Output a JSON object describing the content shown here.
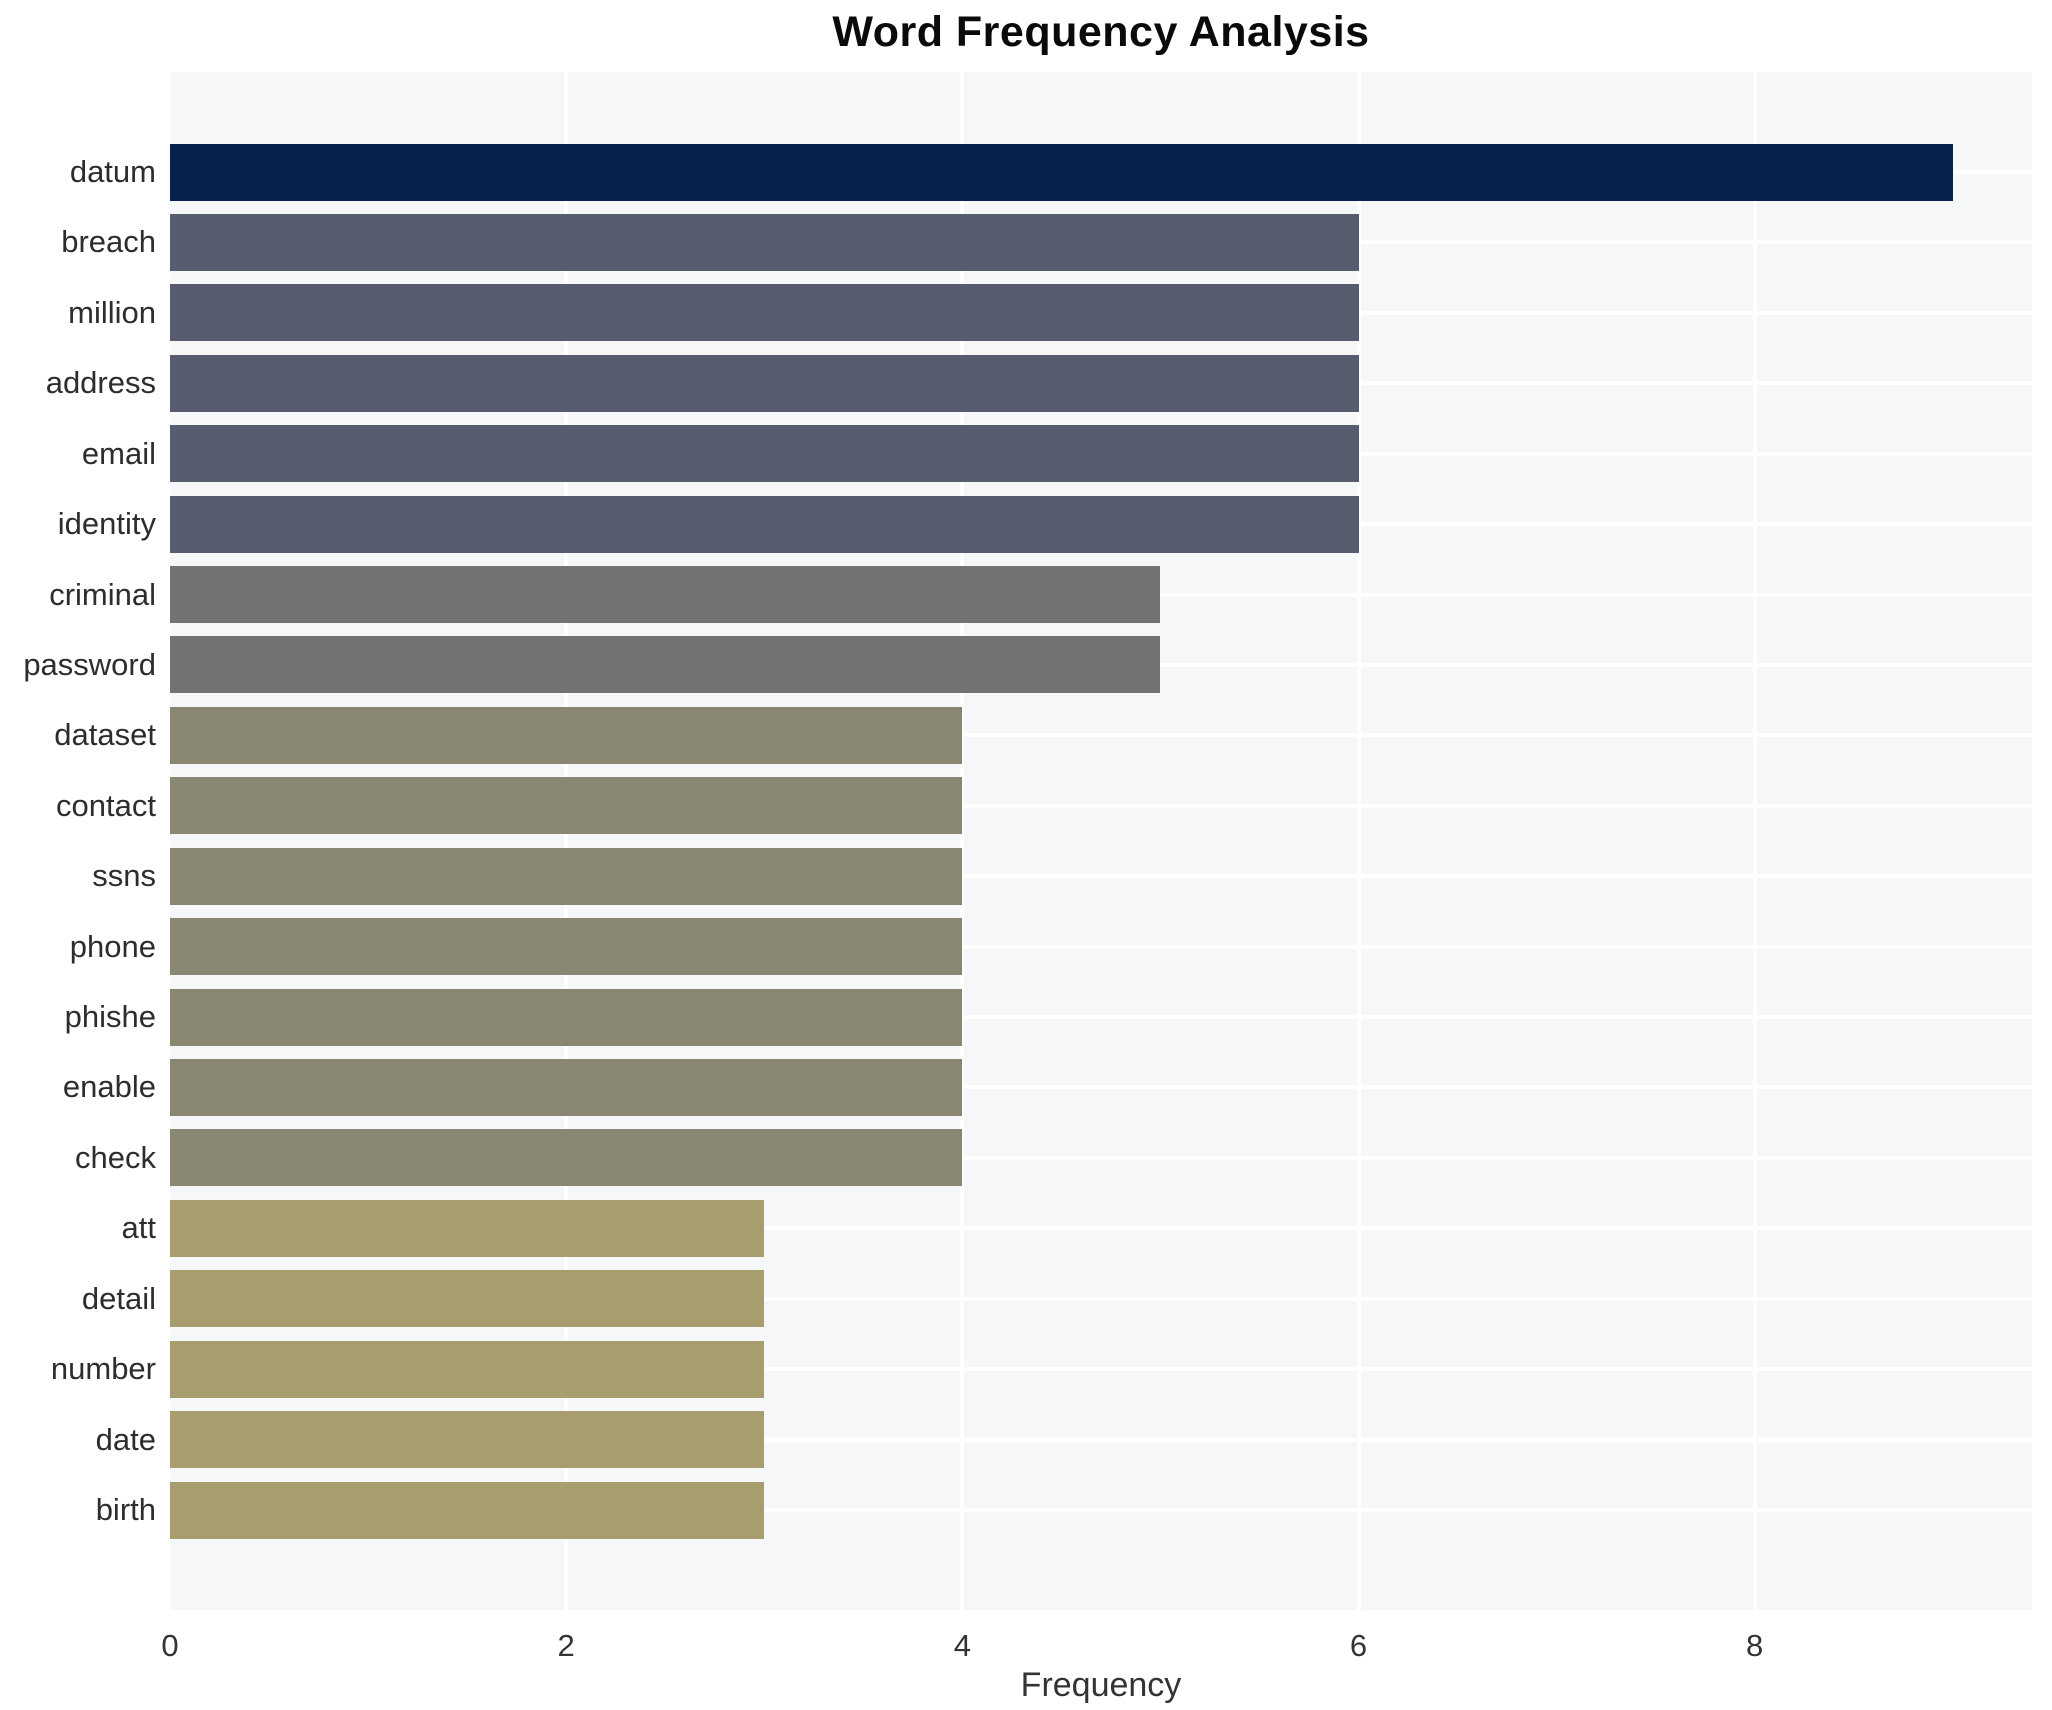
{
  "chart_data": {
    "type": "bar",
    "orientation": "horizontal",
    "title": "Word Frequency Analysis",
    "xlabel": "Frequency",
    "ylabel": "",
    "categories": [
      "datum",
      "breach",
      "million",
      "address",
      "email",
      "identity",
      "criminal",
      "password",
      "dataset",
      "contact",
      "ssns",
      "phone",
      "phishe",
      "enable",
      "check",
      "att",
      "detail",
      "number",
      "date",
      "birth"
    ],
    "values": [
      9,
      6,
      6,
      6,
      6,
      6,
      5,
      5,
      4,
      4,
      4,
      4,
      4,
      4,
      4,
      3,
      3,
      3,
      3,
      3
    ],
    "bar_colors": [
      "#06234e",
      "#575d6e",
      "#575d6e",
      "#575d6e",
      "#575d6e",
      "#575d6e",
      "#727274",
      "#727274",
      "#898672",
      "#898672",
      "#898672",
      "#898672",
      "#898672",
      "#898672",
      "#898672",
      "#a79d6f",
      "#a79d6f",
      "#a79d6f",
      "#a79d6f",
      "#a79d6f"
    ],
    "xticks": [
      0,
      2,
      4,
      6,
      8
    ],
    "xlim": [
      0,
      9.4
    ],
    "grid": true,
    "legend": "none",
    "plot_background": "#f6f7f8",
    "grid_color": "#ffffff"
  }
}
